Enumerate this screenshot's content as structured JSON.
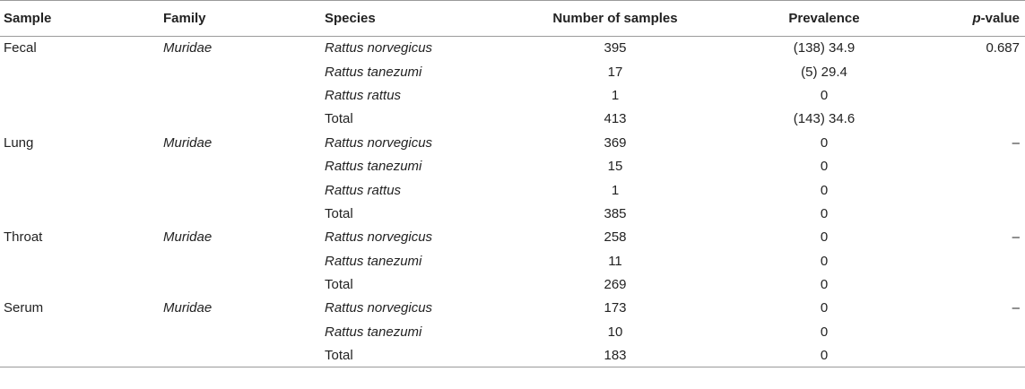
{
  "header": {
    "sample": "Sample",
    "family": "Family",
    "species": "Species",
    "number": "Number of samples",
    "prevalence": "Prevalence",
    "pvalue_p": "p",
    "pvalue_rest": "-value"
  },
  "rows": [
    {
      "sample": "Fecal",
      "family": "Muridae",
      "species": "Rattus norvegicus",
      "number": "395",
      "prevalence": "(138) 34.9",
      "pvalue": "0.687"
    },
    {
      "sample": "",
      "family": "",
      "species": "Rattus tanezumi",
      "number": "17",
      "prevalence": "(5) 29.4",
      "pvalue": ""
    },
    {
      "sample": "",
      "family": "",
      "species": "Rattus rattus",
      "number": "1",
      "prevalence": "0",
      "pvalue": ""
    },
    {
      "sample": "",
      "family": "",
      "species": "Total",
      "number": "413",
      "prevalence": "(143) 34.6",
      "pvalue": ""
    },
    {
      "sample": "Lung",
      "family": "Muridae",
      "species": "Rattus norvegicus",
      "number": "369",
      "prevalence": "0",
      "pvalue": "–"
    },
    {
      "sample": "",
      "family": "",
      "species": "Rattus tanezumi",
      "number": "15",
      "prevalence": "0",
      "pvalue": ""
    },
    {
      "sample": "",
      "family": "",
      "species": "Rattus rattus",
      "number": "1",
      "prevalence": "0",
      "pvalue": ""
    },
    {
      "sample": "",
      "family": "",
      "species": "Total",
      "number": "385",
      "prevalence": "0",
      "pvalue": ""
    },
    {
      "sample": "Throat",
      "family": "Muridae",
      "species": "Rattus norvegicus",
      "number": "258",
      "prevalence": "0",
      "pvalue": "–"
    },
    {
      "sample": "",
      "family": "",
      "species": "Rattus tanezumi",
      "number": "11",
      "prevalence": "0",
      "pvalue": ""
    },
    {
      "sample": "",
      "family": "",
      "species": "Total",
      "number": "269",
      "prevalence": "0",
      "pvalue": ""
    },
    {
      "sample": "Serum",
      "family": "Muridae",
      "species": "Rattus norvegicus",
      "number": "173",
      "prevalence": "0",
      "pvalue": "–"
    },
    {
      "sample": "",
      "family": "",
      "species": "Rattus tanezumi",
      "number": "10",
      "prevalence": "0",
      "pvalue": ""
    },
    {
      "sample": "",
      "family": "",
      "species": "Total",
      "number": "183",
      "prevalence": "0",
      "pvalue": ""
    }
  ]
}
